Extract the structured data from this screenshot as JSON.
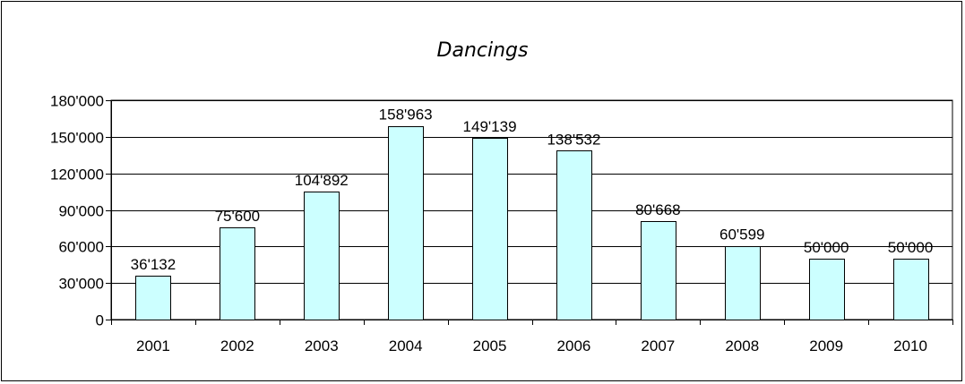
{
  "chart_data": {
    "type": "bar",
    "title": "Dancings",
    "xlabel": "",
    "ylabel": "",
    "categories": [
      "2001",
      "2002",
      "2003",
      "2004",
      "2005",
      "2006",
      "2007",
      "2008",
      "2009",
      "2010"
    ],
    "values": [
      36132,
      75600,
      104892,
      158963,
      149139,
      138532,
      80668,
      60599,
      50000,
      50000
    ],
    "data_labels": [
      "36'132",
      "75'600",
      "104'892",
      "158'963",
      "149'139",
      "138'532",
      "80'668",
      "60'599",
      "50'000",
      "50'000"
    ],
    "ylim": [
      0,
      180000
    ],
    "yticks": [
      0,
      30000,
      60000,
      90000,
      120000,
      150000,
      180000
    ],
    "ytick_labels": [
      "0",
      "30'000",
      "60'000",
      "90'000",
      "120'000",
      "150'000",
      "180'000"
    ],
    "grid": true,
    "legend": "none",
    "colors": {
      "bar_fill": "#CCFFFF",
      "bar_stroke": "#000000",
      "grid": "#000000",
      "axis": "#000000"
    }
  }
}
